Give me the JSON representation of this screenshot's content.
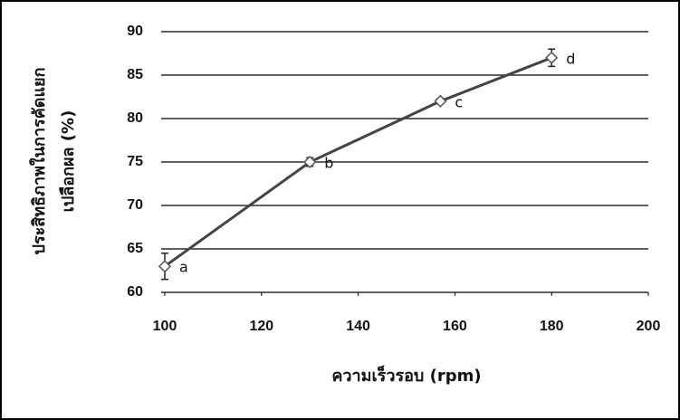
{
  "chart_data": {
    "type": "line",
    "ylabel": [
      "ประสิทธิภาพในการคัดแยก",
      "เปลือกผล (%)"
    ],
    "xlabel": "ความเร็วรอบ (rpm)",
    "x": [
      100,
      130,
      157,
      180
    ],
    "series": [
      {
        "color": "#444444",
        "values": [
          63,
          75,
          82,
          87
        ],
        "errors": [
          1.5,
          0.5,
          0.3,
          1
        ],
        "point_labels": [
          "a",
          "b",
          "c",
          "d"
        ]
      }
    ],
    "xlim": [
      100,
      200
    ],
    "xticks": [
      100,
      120,
      140,
      160,
      180,
      200
    ],
    "ylim": [
      60,
      90
    ],
    "yticks": [
      60,
      65,
      70,
      75,
      80,
      85,
      90
    ],
    "grid": true
  }
}
